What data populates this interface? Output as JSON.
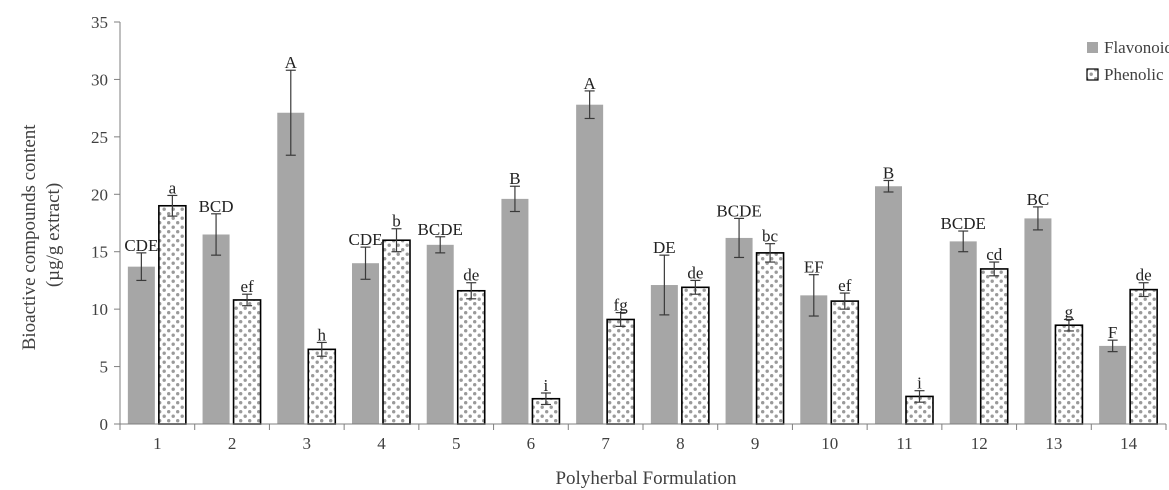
{
  "chart_data": {
    "type": "bar",
    "categories": [
      "1",
      "2",
      "3",
      "4",
      "5",
      "6",
      "7",
      "8",
      "9",
      "10",
      "11",
      "12",
      "13",
      "14"
    ],
    "ylabel_line1": "Bioactive compounds content",
    "ylabel_line2": "(µg/g extract)",
    "xlabel": "Polyherbal Formulation",
    "ylim": [
      0,
      35
    ],
    "yticks": [
      0,
      5,
      10,
      15,
      20,
      25,
      30,
      35
    ],
    "legend_position": "top-right",
    "grid": false,
    "series": [
      {
        "name": "Flavonoid",
        "color": "#a6a6a6",
        "pattern": "solid",
        "values": [
          13.7,
          16.5,
          27.1,
          14.0,
          15.6,
          19.6,
          27.8,
          12.1,
          16.2,
          11.2,
          20.7,
          15.9,
          17.9,
          6.8
        ],
        "errors": [
          1.2,
          1.8,
          3.7,
          1.4,
          0.7,
          1.1,
          1.2,
          2.6,
          1.7,
          1.8,
          0.5,
          0.9,
          1.0,
          0.5
        ],
        "letters": [
          "CDE",
          "BCD",
          "A",
          "CDE",
          "BCDE",
          "B",
          "A",
          "DE",
          "BCDE",
          "EF",
          "B",
          "BCDE",
          "BC",
          "F"
        ]
      },
      {
        "name": "Phenolic",
        "color": "#ffffff",
        "pattern": "dotted",
        "values": [
          19.0,
          10.8,
          6.5,
          16.0,
          11.6,
          2.2,
          9.1,
          11.9,
          14.9,
          10.7,
          2.4,
          13.5,
          8.6,
          11.7
        ],
        "errors": [
          0.9,
          0.5,
          0.6,
          1.0,
          0.7,
          0.5,
          0.6,
          0.6,
          0.8,
          0.7,
          0.5,
          0.6,
          0.5,
          0.6
        ],
        "letters": [
          "a",
          "ef",
          "h",
          "b",
          "de",
          "i",
          "fg",
          "de",
          "bc",
          "ef",
          "i",
          "cd",
          "g",
          "de"
        ]
      }
    ]
  }
}
